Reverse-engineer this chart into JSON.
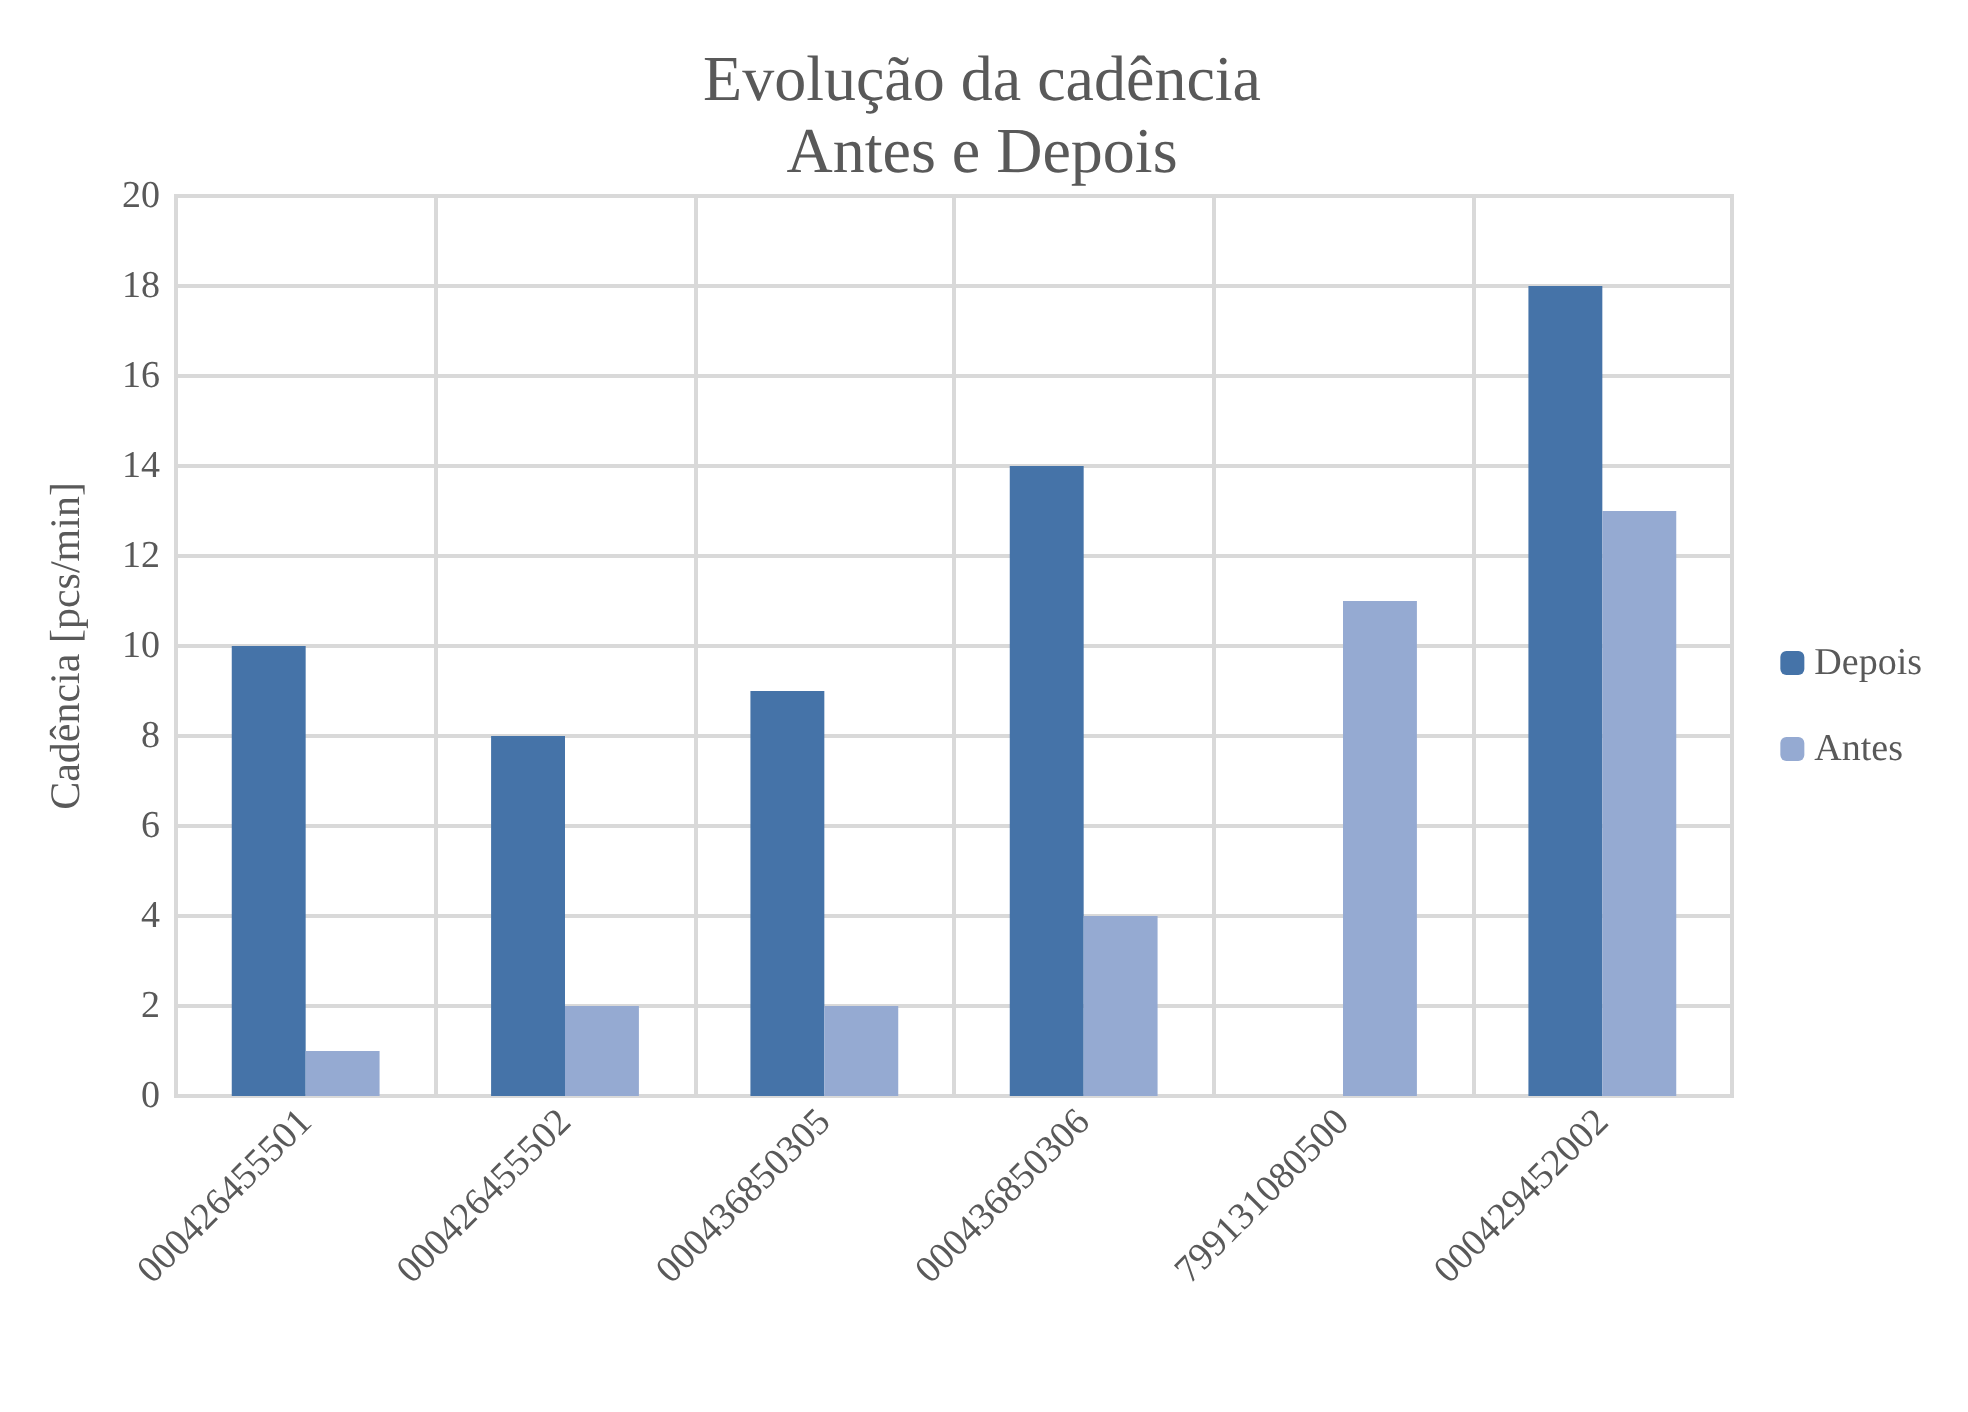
{
  "chart_data": {
    "type": "bar",
    "title": "Evolução da cadência\nAntes e Depois",
    "ylabel": "Cadência [pcs/min]",
    "categories": [
      "000426455501",
      "000426455502",
      "000436850305",
      "000436850306",
      "799131080500",
      "000429452002"
    ],
    "series": [
      {
        "name": "Depois",
        "color": "#4573a8",
        "values": [
          10,
          8,
          9,
          14,
          0,
          18
        ]
      },
      {
        "name": "Antes",
        "color": "#95aad2",
        "values": [
          1,
          2,
          2,
          4,
          11,
          13
        ]
      }
    ],
    "ylim": [
      0,
      20
    ],
    "yticks": [
      0,
      2,
      4,
      6,
      8,
      10,
      12,
      14,
      16,
      18,
      20
    ],
    "grid": true,
    "legend": "right"
  }
}
